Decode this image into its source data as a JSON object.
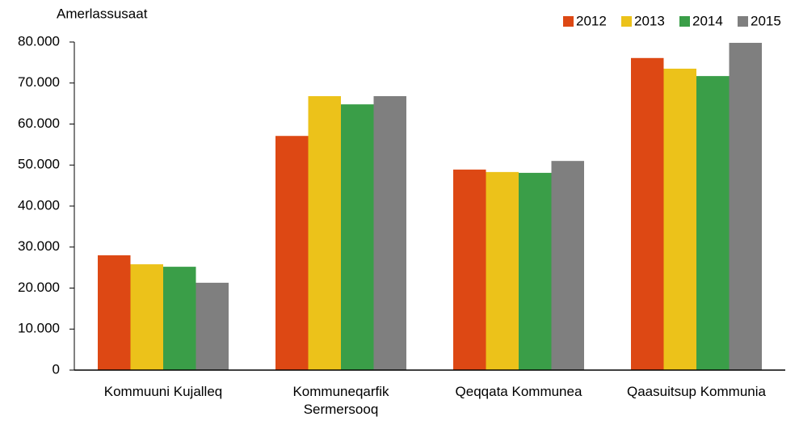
{
  "chart_data": {
    "type": "bar",
    "y_label": "Amerlassusaat",
    "categories": [
      "Kommuuni Kujalleq",
      "Kommuneqarfik\nSermersooq",
      "Qeqqata Kommunea",
      "Qaasuitsup Kommunia"
    ],
    "series": [
      {
        "name": "2012",
        "color": "#dd4814",
        "values": [
          28000,
          57100,
          48900,
          76100
        ]
      },
      {
        "name": "2013",
        "color": "#ecc21a",
        "values": [
          25800,
          66800,
          48300,
          73500
        ]
      },
      {
        "name": "2014",
        "color": "#3a9e48",
        "values": [
          25200,
          64800,
          48100,
          71700
        ]
      },
      {
        "name": "2015",
        "color": "#7f7f7f",
        "values": [
          21300,
          66800,
          51000,
          79800
        ]
      }
    ],
    "ylim": [
      0,
      80000
    ],
    "yticks": [
      0,
      {
        "value": 10000,
        "label": "10.000"
      },
      {
        "value": 20000,
        "label": "20.000"
      },
      {
        "value": 30000,
        "label": "30.000"
      },
      {
        "value": 40000,
        "label": "40.000"
      },
      {
        "value": 50000,
        "label": "50.000"
      },
      {
        "value": 60000,
        "label": "60.000"
      },
      {
        "value": 70000,
        "label": "70.000"
      },
      {
        "value": 80000,
        "label": "80.000"
      }
    ],
    "grid": false,
    "legend": "top-right"
  }
}
